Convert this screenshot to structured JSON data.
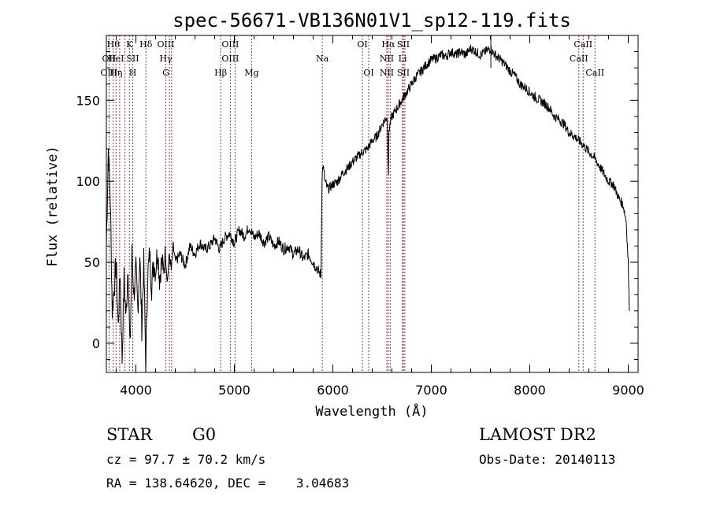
{
  "chart_data": {
    "type": "line",
    "title": "spec-56671-VB136N01V1_sp12-119.fits",
    "xlabel": "Wavelength (Å)",
    "ylabel": "Flux (relative)",
    "xlim": [
      3700,
      9100
    ],
    "ylim": [
      -18,
      190
    ],
    "xticks": [
      "4000",
      "5000",
      "6000",
      "7000",
      "8000",
      "9000"
    ],
    "xtick_values": [
      4000,
      5000,
      6000,
      7000,
      8000,
      9000
    ],
    "yticks": [
      "0",
      "50",
      "100",
      "150"
    ],
    "ytick_values": [
      0,
      50,
      100,
      150
    ],
    "grid": false,
    "line_color": "#000000",
    "marker_line_color": "#b03030",
    "series": [
      {
        "values_x": [
          3700,
          3720,
          3740,
          3760,
          3780,
          3800,
          3820,
          3840,
          3860,
          3880,
          3900,
          3920,
          3940,
          3960,
          3980,
          4000,
          4020,
          4040,
          4060,
          4080,
          4100,
          4120,
          4140,
          4160,
          4180,
          4200,
          4220,
          4240,
          4260,
          4280,
          4300,
          4320,
          4340,
          4360,
          4380,
          4400,
          4450,
          4500,
          4550,
          4600,
          4650,
          4700,
          4750,
          4800,
          4850,
          4900,
          4950,
          5000,
          5050,
          5100,
          5150,
          5200,
          5250,
          5300,
          5350,
          5400,
          5450,
          5500,
          5550,
          5600,
          5650,
          5700,
          5750,
          5800,
          5850,
          5880,
          5890,
          5900,
          5920,
          5950,
          6000,
          6050,
          6100,
          6150,
          6200,
          6250,
          6300,
          6350,
          6400,
          6450,
          6500,
          6550,
          6560,
          6565,
          6570,
          6600,
          6650,
          6700,
          6750,
          6800,
          6850,
          6900,
          6950,
          7000,
          7050,
          7100,
          7150,
          7200,
          7250,
          7300,
          7350,
          7400,
          7450,
          7500,
          7550,
          7600,
          7620,
          7650,
          7700,
          7750,
          7800,
          7850,
          7900,
          7950,
          8000,
          8050,
          8100,
          8150,
          8200,
          8250,
          8300,
          8350,
          8400,
          8450,
          8500,
          8550,
          8600,
          8650,
          8700,
          8750,
          8800,
          8850,
          8900,
          8950,
          8980,
          9000,
          9010
        ],
        "values_y": [
          60,
          120,
          90,
          20,
          35,
          50,
          10,
          45,
          -10,
          40,
          15,
          50,
          -5,
          55,
          30,
          45,
          20,
          55,
          10,
          50,
          -12,
          42,
          55,
          35,
          50,
          45,
          58,
          40,
          50,
          45,
          55,
          38,
          55,
          45,
          60,
          50,
          55,
          48,
          60,
          55,
          62,
          58,
          60,
          65,
          58,
          65,
          68,
          62,
          70,
          66,
          72,
          65,
          68,
          62,
          66,
          60,
          63,
          58,
          60,
          55,
          58,
          52,
          55,
          50,
          45,
          42,
          102,
          110,
          100,
          95,
          98,
          100,
          105,
          108,
          112,
          115,
          118,
          120,
          125,
          128,
          135,
          140,
          115,
          105,
          132,
          140,
          145,
          150,
          155,
          160,
          165,
          168,
          172,
          175,
          176,
          178,
          177,
          180,
          178,
          180,
          178,
          182,
          180,
          178,
          180,
          182,
          180,
          178,
          175,
          172,
          168,
          165,
          160,
          158,
          155,
          152,
          150,
          148,
          145,
          140,
          138,
          135,
          130,
          128,
          125,
          122,
          118,
          115,
          110,
          105,
          100,
          98,
          90,
          85,
          75,
          50,
          20
        ],
        "spike": {
          "x": 7605,
          "y": 192
        }
      }
    ],
    "line_markers": [
      {
        "x": 3727,
        "labels": [
          {
            "text": "OII",
            "row": 1
          },
          {
            "text": "OIII",
            "row": 2
          }
        ]
      },
      {
        "x": 3770,
        "labels": [
          {
            "text": "Hθ",
            "row": 0
          }
        ]
      },
      {
        "x": 3798,
        "labels": [
          {
            "text": "HeI",
            "row": 1
          },
          {
            "text": "Hη",
            "row": 2
          }
        ]
      },
      {
        "x": 3835,
        "labels": []
      },
      {
        "x": 3889,
        "labels": []
      },
      {
        "x": 3934,
        "labels": [
          {
            "text": "K",
            "row": 0
          }
        ]
      },
      {
        "x": 3968,
        "labels": [
          {
            "text": "SII",
            "row": 1
          },
          {
            "text": "H",
            "row": 2
          }
        ]
      },
      {
        "x": 4102,
        "labels": [
          {
            "text": "Hδ",
            "row": 0
          }
        ]
      },
      {
        "x": 4304,
        "labels": [
          {
            "text": "OIII",
            "row": 0
          },
          {
            "text": "Hγ",
            "row": 1
          },
          {
            "text": "G",
            "row": 2
          }
        ]
      },
      {
        "x": 4341,
        "labels": []
      },
      {
        "x": 4363,
        "labels": []
      },
      {
        "x": 4861,
        "labels": [
          {
            "text": "Hβ",
            "row": 2
          }
        ]
      },
      {
        "x": 4959,
        "labels": [
          {
            "text": "OIII",
            "row": 0
          },
          {
            "text": "OIII",
            "row": 1
          }
        ]
      },
      {
        "x": 5007,
        "labels": []
      },
      {
        "x": 5175,
        "labels": [
          {
            "text": "Mg",
            "row": 2
          }
        ]
      },
      {
        "x": 5893,
        "labels": [
          {
            "text": "Na",
            "row": 1
          }
        ]
      },
      {
        "x": 6300,
        "labels": [
          {
            "text": "OI",
            "row": 0
          }
        ]
      },
      {
        "x": 6364,
        "labels": [
          {
            "text": "OI",
            "row": 2
          }
        ]
      },
      {
        "x": 6548,
        "labels": [
          {
            "text": "NII",
            "row": 1
          },
          {
            "text": "NII",
            "row": 2
          }
        ]
      },
      {
        "x": 6563,
        "labels": [
          {
            "text": "Hα",
            "row": 0
          }
        ]
      },
      {
        "x": 6583,
        "labels": []
      },
      {
        "x": 6708,
        "labels": [
          {
            "text": "Li",
            "row": 1
          }
        ]
      },
      {
        "x": 6716,
        "labels": [
          {
            "text": "SII",
            "row": 0
          },
          {
            "text": "SII",
            "row": 2
          }
        ]
      },
      {
        "x": 6731,
        "labels": []
      },
      {
        "x": 8498,
        "labels": [
          {
            "text": "CaII",
            "row": 1
          }
        ]
      },
      {
        "x": 8542,
        "labels": [
          {
            "text": "CaII",
            "row": 0
          }
        ]
      },
      {
        "x": 8662,
        "labels": [
          {
            "text": "CaII",
            "row": 2
          }
        ]
      }
    ]
  },
  "footer": {
    "class_label": "STAR",
    "subclass_label": "G0",
    "survey": "LAMOST DR2",
    "redshift_text": "cz = 97.7 ± 70.2 km/s",
    "obs_date_text": "Obs-Date: 20140113",
    "coords_text": "RA = 138.64620, DEC =    3.04683"
  }
}
